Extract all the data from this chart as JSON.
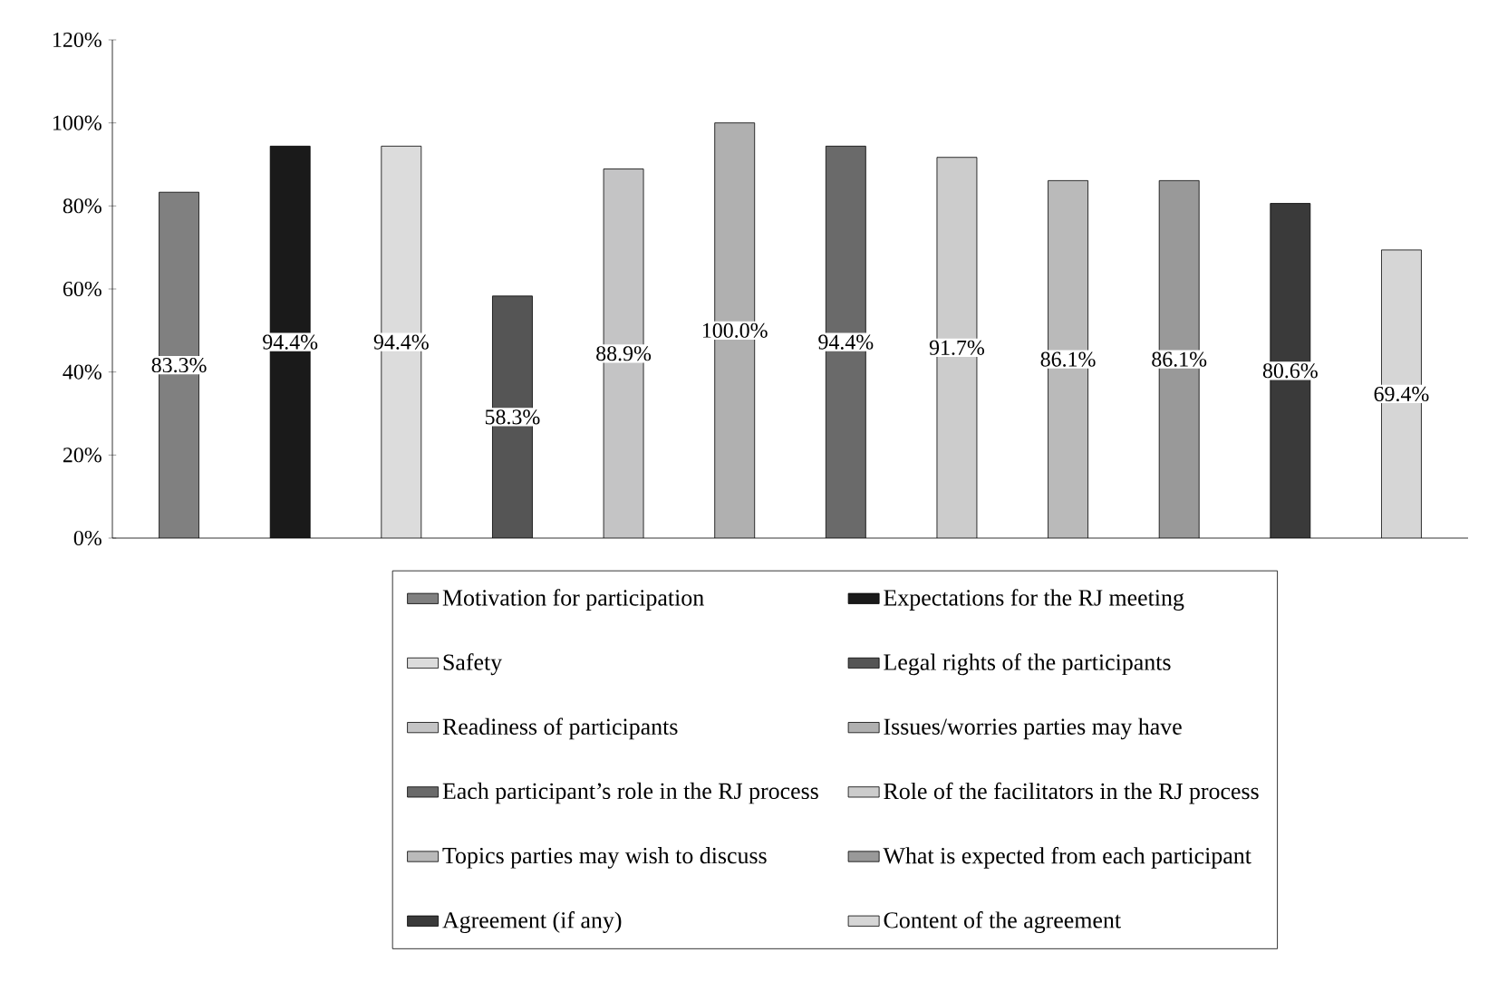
{
  "chart_data": {
    "type": "bar",
    "categories": [
      null,
      null,
      null,
      null,
      null,
      null,
      null,
      null,
      null,
      null,
      null,
      null
    ],
    "series": [
      {
        "name": "Motivation for participation",
        "color": "#808080",
        "values": [
          83.3,
          null,
          null,
          null,
          null,
          null,
          null,
          null,
          null,
          null,
          null,
          null
        ],
        "value_labels": [
          "83.3%",
          null,
          null,
          null,
          null,
          null,
          null,
          null,
          null,
          null,
          null,
          null
        ]
      },
      {
        "name": "Expectations for the RJ meeting",
        "color": "#1a1a1a",
        "values": [
          null,
          94.4,
          null,
          null,
          null,
          null,
          null,
          null,
          null,
          null,
          null,
          null
        ],
        "value_labels": [
          null,
          "94.4%",
          null,
          null,
          null,
          null,
          null,
          null,
          null,
          null,
          null,
          null
        ]
      },
      {
        "name": "Safety",
        "color": "#dcdcdc",
        "values": [
          null,
          null,
          94.4,
          null,
          null,
          null,
          null,
          null,
          null,
          null,
          null,
          null
        ],
        "value_labels": [
          null,
          null,
          "94.4%",
          null,
          null,
          null,
          null,
          null,
          null,
          null,
          null,
          null
        ]
      },
      {
        "name": "Legal rights of the participants",
        "color": "#555555",
        "values": [
          null,
          null,
          null,
          58.3,
          null,
          null,
          null,
          null,
          null,
          null,
          null,
          null
        ],
        "value_labels": [
          null,
          null,
          null,
          "58.3%",
          null,
          null,
          null,
          null,
          null,
          null,
          null,
          null
        ]
      },
      {
        "name": "Readiness of participants",
        "color": "#c4c4c5",
        "values": [
          null,
          null,
          null,
          null,
          88.9,
          null,
          null,
          null,
          null,
          null,
          null,
          null
        ],
        "value_labels": [
          null,
          null,
          null,
          null,
          "88.9%",
          null,
          null,
          null,
          null,
          null,
          null,
          null
        ]
      },
      {
        "name": "Issues/worries parties may have",
        "color": "#b0b0b0",
        "values": [
          null,
          null,
          null,
          null,
          null,
          100.0,
          null,
          null,
          null,
          null,
          null,
          null
        ],
        "value_labels": [
          null,
          null,
          null,
          null,
          null,
          "100.0%",
          null,
          null,
          null,
          null,
          null,
          null
        ]
      },
      {
        "name": "Each participant’s role in the RJ process",
        "color": "#6a6a6a",
        "values": [
          null,
          null,
          null,
          null,
          null,
          null,
          94.4,
          null,
          null,
          null,
          null,
          null
        ],
        "value_labels": [
          null,
          null,
          null,
          null,
          null,
          null,
          "94.4%",
          null,
          null,
          null,
          null,
          null
        ]
      },
      {
        "name": "Role of the facilitators in the RJ process",
        "color": "#cccccc",
        "values": [
          null,
          null,
          null,
          null,
          null,
          null,
          null,
          91.7,
          null,
          null,
          null,
          null
        ],
        "value_labels": [
          null,
          null,
          null,
          null,
          null,
          null,
          null,
          "91.7%",
          null,
          null,
          null,
          null
        ]
      },
      {
        "name": "Topics parties may wish to discuss",
        "color": "#bababa",
        "values": [
          null,
          null,
          null,
          null,
          null,
          null,
          null,
          null,
          86.1,
          null,
          null,
          null
        ],
        "value_labels": [
          null,
          null,
          null,
          null,
          null,
          null,
          null,
          null,
          "86.1%",
          null,
          null,
          null
        ]
      },
      {
        "name": "What is expected from each participant",
        "color": "#999999",
        "values": [
          null,
          null,
          null,
          null,
          null,
          null,
          null,
          null,
          null,
          86.1,
          null,
          null
        ],
        "value_labels": [
          null,
          null,
          null,
          null,
          null,
          null,
          null,
          null,
          null,
          "86.1%",
          null,
          null
        ]
      },
      {
        "name": "Agreement (if any)",
        "color": "#3a3a3a",
        "values": [
          null,
          null,
          null,
          null,
          null,
          null,
          null,
          null,
          null,
          null,
          80.6,
          null
        ],
        "value_labels": [
          null,
          null,
          null,
          null,
          null,
          null,
          null,
          null,
          null,
          null,
          "80.6%",
          null
        ]
      },
      {
        "name": "Content of the agreement",
        "color": "#d6d6d6",
        "values": [
          null,
          null,
          null,
          null,
          null,
          null,
          null,
          null,
          null,
          null,
          null,
          69.4
        ],
        "value_labels": [
          null,
          null,
          null,
          null,
          null,
          null,
          null,
          null,
          null,
          null,
          null,
          "69.4%"
        ]
      }
    ],
    "ylim": [
      0,
      120
    ],
    "yticks": [
      {
        "value": 0,
        "label": "0%"
      },
      {
        "value": 20,
        "label": "20%"
      },
      {
        "value": 40,
        "label": "40%"
      },
      {
        "value": 60,
        "label": "60%"
      },
      {
        "value": 80,
        "label": "80%"
      },
      {
        "value": 100,
        "label": "100%"
      },
      {
        "value": 120,
        "label": "120%"
      }
    ],
    "legend": "bottom",
    "grid": false
  }
}
